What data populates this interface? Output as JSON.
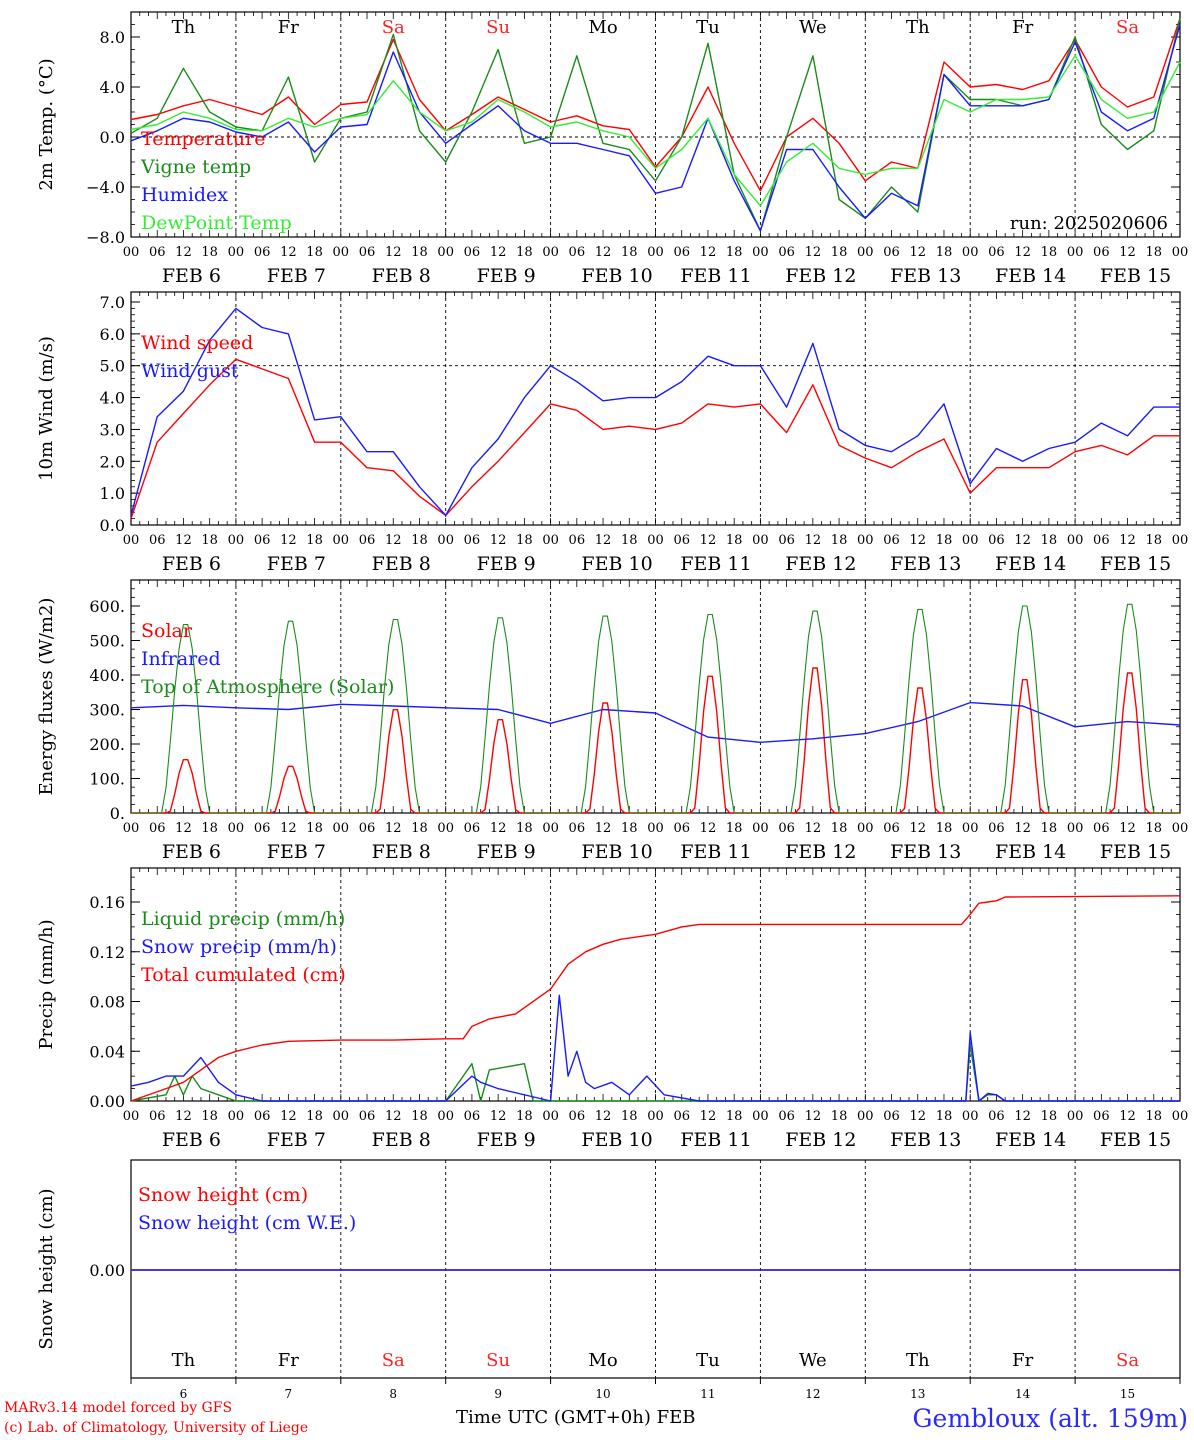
{
  "footer": {
    "model": "MARv3.14 model forced by GFS",
    "credit": "(c) Lab. of Climatology, University of Liege",
    "time_axis": "Time UTC (GMT+0h) FEB",
    "station": "Gembloux (alt. 159m)"
  },
  "x_axis": {
    "days": [
      "6",
      "7",
      "8",
      "9",
      "10",
      "11",
      "12",
      "13",
      "14",
      "15"
    ],
    "month": "FEB",
    "weekdays": [
      "Th",
      "Fr",
      "Sa",
      "Su",
      "Mo",
      "Tu",
      "We",
      "Th",
      "Fr",
      "Sa"
    ],
    "weekend_flags": [
      false,
      false,
      true,
      true,
      false,
      false,
      false,
      false,
      false,
      true
    ],
    "hour_ticks": [
      "00",
      "06",
      "12",
      "18"
    ],
    "final_tick": "00"
  },
  "colors": {
    "red": "#ff0000",
    "green": "#1a8c1a",
    "blue": "#1a1aff",
    "lightgreen": "#33ee33",
    "weekend": "#ff2222"
  },
  "chart_data": [
    {
      "type": "line",
      "ylabel": "2m Temp. (°C)",
      "ylim": [
        -8,
        10
      ],
      "ytick_labels": [
        "8.0",
        "4.0",
        "0.0",
        "−4.0",
        "−8.0"
      ],
      "ytick_values": [
        8,
        4,
        0,
        -4,
        -8
      ],
      "annotation": "run: 2025020606",
      "legend_placement": "top-left",
      "x_hours": [
        0,
        6,
        12,
        18,
        24,
        30,
        36,
        42,
        48,
        54,
        60,
        66,
        72,
        78,
        84,
        90,
        96,
        102,
        108,
        114,
        120,
        126,
        132,
        138,
        144,
        150,
        156,
        162,
        168,
        174,
        180,
        186,
        192,
        198,
        204,
        210,
        216,
        222,
        228,
        234,
        240
      ],
      "series": [
        {
          "name": "Temperature",
          "color": "red",
          "values": [
            1.4,
            1.8,
            2.5,
            3.0,
            2.4,
            1.8,
            3.2,
            1.0,
            2.6,
            2.8,
            7.8,
            3.0,
            0.5,
            1.8,
            3.2,
            2.2,
            1.2,
            1.7,
            0.9,
            0.6,
            -2.4,
            0.0,
            4.0,
            -0.5,
            -4.3,
            0.0,
            1.5,
            -0.5,
            -3.5,
            -2.0,
            -2.5,
            6.0,
            4.0,
            4.2,
            3.8,
            4.5,
            7.8,
            4.0,
            2.4,
            3.2,
            9.5
          ]
        },
        {
          "name": "Vigne temp",
          "color": "green",
          "values": [
            0.3,
            1.5,
            5.5,
            2.0,
            0.8,
            0.5,
            4.8,
            -2.0,
            1.5,
            2.0,
            8.2,
            0.5,
            -2.0,
            2.0,
            7.0,
            -0.5,
            0.0,
            6.5,
            -0.5,
            -1.0,
            -3.5,
            0.0,
            7.5,
            -3.0,
            -7.5,
            0.0,
            6.5,
            -5.0,
            -6.5,
            -4.0,
            -6.0,
            5.0,
            3.0,
            3.0,
            2.5,
            3.0,
            8.0,
            1.0,
            -1.0,
            0.5,
            9.5
          ]
        },
        {
          "name": "Humidex",
          "color": "blue",
          "values": [
            -0.3,
            0.5,
            1.5,
            1.2,
            0.4,
            0.0,
            1.2,
            -1.2,
            0.8,
            1.0,
            6.8,
            2.0,
            -0.5,
            1.0,
            2.5,
            0.5,
            -0.5,
            -0.5,
            -1.0,
            -1.5,
            -4.5,
            -4.0,
            1.5,
            -3.5,
            -7.5,
            -1.0,
            -1.0,
            -4.0,
            -6.5,
            -4.5,
            -5.5,
            5.0,
            2.5,
            2.5,
            2.5,
            3.0,
            7.6,
            2.0,
            0.5,
            1.5,
            9.0
          ]
        },
        {
          "name": "DewPoint Temp",
          "color": "lightgreen",
          "values": [
            0.6,
            1.0,
            2.0,
            1.5,
            0.6,
            0.5,
            1.5,
            0.8,
            1.5,
            1.8,
            4.5,
            2.0,
            0.5,
            1.2,
            3.0,
            2.0,
            0.8,
            1.2,
            0.5,
            0.0,
            -2.5,
            -1.0,
            1.5,
            -3.0,
            -5.5,
            -2.0,
            -0.5,
            -2.5,
            -3.0,
            -2.5,
            -2.5,
            3.0,
            2.0,
            3.0,
            3.0,
            3.2,
            6.5,
            3.0,
            1.5,
            2.0,
            6.0
          ]
        }
      ]
    },
    {
      "type": "line",
      "ylabel": "10m Wind (m/s)",
      "ylim": [
        0,
        7
      ],
      "ytick_labels": [
        "7.0",
        "6.0",
        "5.0",
        "4.0",
        "3.0",
        "2.0",
        "1.0",
        "0.0"
      ],
      "ytick_values": [
        7,
        6,
        5,
        4,
        3,
        2,
        1,
        0
      ],
      "legend_placement": "top-left",
      "x_hours": [
        0,
        6,
        12,
        18,
        24,
        30,
        36,
        42,
        48,
        54,
        60,
        66,
        72,
        78,
        84,
        90,
        96,
        102,
        108,
        114,
        120,
        126,
        132,
        138,
        144,
        150,
        156,
        162,
        168,
        174,
        180,
        186,
        192,
        198,
        204,
        210,
        216,
        222,
        228,
        234,
        240
      ],
      "series": [
        {
          "name": "Wind speed",
          "color": "red",
          "values": [
            0.2,
            2.6,
            3.5,
            4.4,
            5.2,
            4.9,
            4.6,
            2.6,
            2.6,
            1.8,
            1.7,
            0.9,
            0.3,
            1.2,
            2.0,
            2.9,
            3.8,
            3.6,
            3.0,
            3.1,
            3.0,
            3.2,
            3.8,
            3.7,
            3.8,
            2.9,
            4.4,
            2.5,
            2.1,
            1.8,
            2.3,
            2.7,
            1.0,
            1.8,
            1.8,
            1.8,
            2.3,
            2.5,
            2.2,
            2.8,
            2.8
          ]
        },
        {
          "name": "Wind gust",
          "color": "blue",
          "values": [
            0.3,
            3.4,
            4.2,
            5.8,
            6.8,
            6.2,
            6.0,
            3.3,
            3.4,
            2.3,
            2.3,
            1.2,
            0.3,
            1.8,
            2.7,
            4.0,
            5.0,
            4.5,
            3.9,
            4.0,
            4.0,
            4.5,
            5.3,
            5.0,
            5.0,
            3.7,
            5.7,
            3.0,
            2.5,
            2.3,
            2.8,
            3.8,
            1.3,
            2.4,
            2.0,
            2.4,
            2.6,
            3.2,
            2.8,
            3.7,
            3.7
          ]
        }
      ]
    },
    {
      "type": "line",
      "ylabel": "Energy fluxes (W/m2)",
      "ylim": [
        0,
        650
      ],
      "ytick_labels": [
        "600.",
        "500.",
        "400.",
        "300.",
        "200.",
        "100.",
        "0."
      ],
      "ytick_values": [
        600,
        500,
        400,
        300,
        200,
        100,
        0
      ],
      "legend_placement": "top-left",
      "series": [
        {
          "name": "Solar",
          "color": "red",
          "day_peaks": [
            160,
            140,
            310,
            280,
            330,
            410,
            435,
            375,
            400,
            420
          ]
        },
        {
          "name": "Infrared",
          "color": "blue",
          "x_hours": [
            0,
            12,
            24,
            36,
            48,
            60,
            72,
            84,
            96,
            108,
            120,
            132,
            144,
            156,
            168,
            180,
            192,
            204,
            216,
            228,
            240
          ],
          "values": [
            305,
            312,
            305,
            300,
            315,
            310,
            305,
            300,
            260,
            300,
            290,
            220,
            205,
            215,
            230,
            265,
            320,
            310,
            250,
            265,
            255
          ]
        },
        {
          "name": "Top of Atmosphere (Solar)",
          "color": "green",
          "day_peaks": [
            555,
            565,
            570,
            575,
            580,
            585,
            595,
            600,
            610,
            615
          ]
        }
      ]
    },
    {
      "type": "line",
      "ylabel": "Precip (mm/h)",
      "ylim": [
        0,
        0.18
      ],
      "ytick_labels": [
        "0.16",
        "0.12",
        "0.08",
        "0.04",
        "0.00"
      ],
      "ytick_values": [
        0.16,
        0.12,
        0.08,
        0.04,
        0
      ],
      "legend_placement": "top-left",
      "series": [
        {
          "name": "Liquid precip (mm/h)",
          "color": "green",
          "x_hours": [
            0,
            8,
            10,
            12,
            14,
            16,
            20,
            24,
            72,
            78,
            80,
            82,
            90,
            92,
            96,
            120,
            142,
            191,
            192,
            194,
            196,
            198,
            200,
            240
          ],
          "values": [
            0,
            0.005,
            0.02,
            0.005,
            0.02,
            0.01,
            0.005,
            0,
            0,
            0.03,
            0,
            0.025,
            0.03,
            0,
            0,
            0,
            0,
            0,
            0.045,
            0,
            0.005,
            0.005,
            0,
            0
          ]
        },
        {
          "name": "Snow precip (mm/h)",
          "color": "blue",
          "x_hours": [
            0,
            4,
            8,
            12,
            16,
            20,
            24,
            30,
            72,
            78,
            80,
            84,
            96,
            98,
            100,
            102,
            104,
            106,
            110,
            114,
            118,
            122,
            130,
            191,
            192,
            194,
            196,
            198,
            200,
            240
          ],
          "values": [
            0.012,
            0.015,
            0.02,
            0.02,
            0.035,
            0.015,
            0.005,
            0,
            0,
            0.02,
            0.015,
            0.01,
            0,
            0.085,
            0.02,
            0.04,
            0.015,
            0.01,
            0.015,
            0.005,
            0.02,
            0.005,
            0,
            0,
            0.055,
            0,
            0.006,
            0.005,
            0,
            0
          ]
        },
        {
          "name": "Total cumulated (cm)",
          "color": "red",
          "x_hours": [
            0,
            8,
            12,
            16,
            20,
            24,
            30,
            36,
            48,
            60,
            72,
            76,
            78,
            82,
            88,
            96,
            100,
            104,
            108,
            112,
            120,
            126,
            130,
            144,
            160,
            190,
            192,
            194,
            196,
            198,
            200,
            240
          ],
          "values": [
            0,
            0.01,
            0.015,
            0.025,
            0.035,
            0.04,
            0.045,
            0.048,
            0.049,
            0.049,
            0.05,
            0.05,
            0.06,
            0.066,
            0.07,
            0.09,
            0.11,
            0.12,
            0.126,
            0.13,
            0.134,
            0.14,
            0.142,
            0.142,
            0.142,
            0.142,
            0.15,
            0.159,
            0.16,
            0.161,
            0.164,
            0.165
          ]
        }
      ]
    },
    {
      "type": "line",
      "ylabel": "Snow height (cm)",
      "ytick_labels": [
        "0.00"
      ],
      "ytick_values": [
        0
      ],
      "legend_placement": "top-left",
      "series": [
        {
          "name": "Snow height (cm)",
          "color": "red",
          "values": [
            0,
            0
          ]
        },
        {
          "name": "Snow height (cm W.E.)",
          "color": "blue",
          "values": [
            0,
            0
          ]
        }
      ]
    }
  ]
}
